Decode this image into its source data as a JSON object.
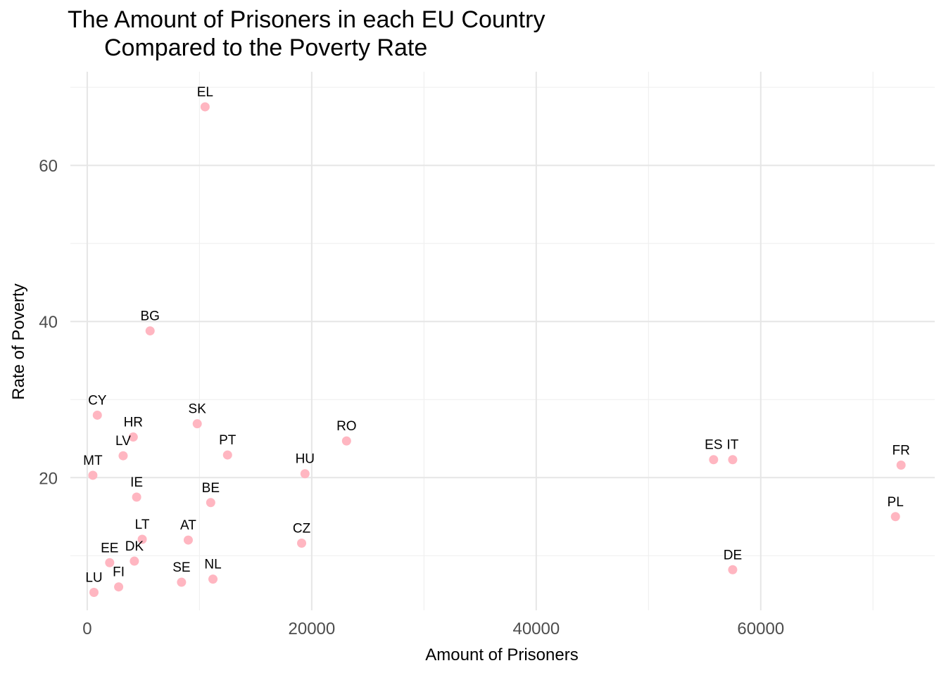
{
  "chart_data": {
    "type": "scatter",
    "title_line1": "The Amount of Prisoners in each EU Country",
    "title_line2": "Compared to the Poverty Rate",
    "xlabel": "Amount of Prisoners",
    "ylabel": "Rate of Poverty",
    "xlim": [
      -1500,
      75500
    ],
    "ylim": [
      3,
      72
    ],
    "xticks": [
      0,
      20000,
      40000,
      60000
    ],
    "xtick_labels": [
      "0",
      "20000",
      "40000",
      "60000"
    ],
    "yticks": [
      20,
      40,
      60
    ],
    "ytick_labels": [
      "20",
      "40",
      "60"
    ],
    "x_minor": [
      10000,
      30000,
      50000,
      70000
    ],
    "y_minor": [
      10,
      30,
      50,
      70
    ],
    "grid": true,
    "point_color": "#ffb6c1",
    "points": [
      {
        "label": "EL",
        "x": 10500,
        "y": 67.5
      },
      {
        "label": "BG",
        "x": 5600,
        "y": 38.8
      },
      {
        "label": "CY",
        "x": 900,
        "y": 28.0
      },
      {
        "label": "SK",
        "x": 9800,
        "y": 26.9
      },
      {
        "label": "HR",
        "x": 4100,
        "y": 25.2
      },
      {
        "label": "RO",
        "x": 23100,
        "y": 24.7
      },
      {
        "label": "LV",
        "x": 3200,
        "y": 22.8
      },
      {
        "label": "PT",
        "x": 12500,
        "y": 22.9
      },
      {
        "label": "MT",
        "x": 500,
        "y": 20.3
      },
      {
        "label": "HU",
        "x": 19400,
        "y": 20.5
      },
      {
        "label": "ES",
        "x": 55800,
        "y": 22.3
      },
      {
        "label": "IT",
        "x": 57500,
        "y": 22.3
      },
      {
        "label": "FR",
        "x": 72500,
        "y": 21.6
      },
      {
        "label": "IE",
        "x": 4400,
        "y": 17.5
      },
      {
        "label": "BE",
        "x": 11000,
        "y": 16.8
      },
      {
        "label": "PL",
        "x": 72000,
        "y": 15.0
      },
      {
        "label": "LT",
        "x": 4900,
        "y": 12.1
      },
      {
        "label": "AT",
        "x": 9000,
        "y": 12.0
      },
      {
        "label": "CZ",
        "x": 19100,
        "y": 11.6
      },
      {
        "label": "EE",
        "x": 2000,
        "y": 9.1
      },
      {
        "label": "DK",
        "x": 4200,
        "y": 9.3
      },
      {
        "label": "DE",
        "x": 57500,
        "y": 8.2
      },
      {
        "label": "SE",
        "x": 8400,
        "y": 6.6
      },
      {
        "label": "NL",
        "x": 11200,
        "y": 7.0
      },
      {
        "label": "FI",
        "x": 2800,
        "y": 6.0
      },
      {
        "label": "LU",
        "x": 600,
        "y": 5.3
      }
    ]
  }
}
